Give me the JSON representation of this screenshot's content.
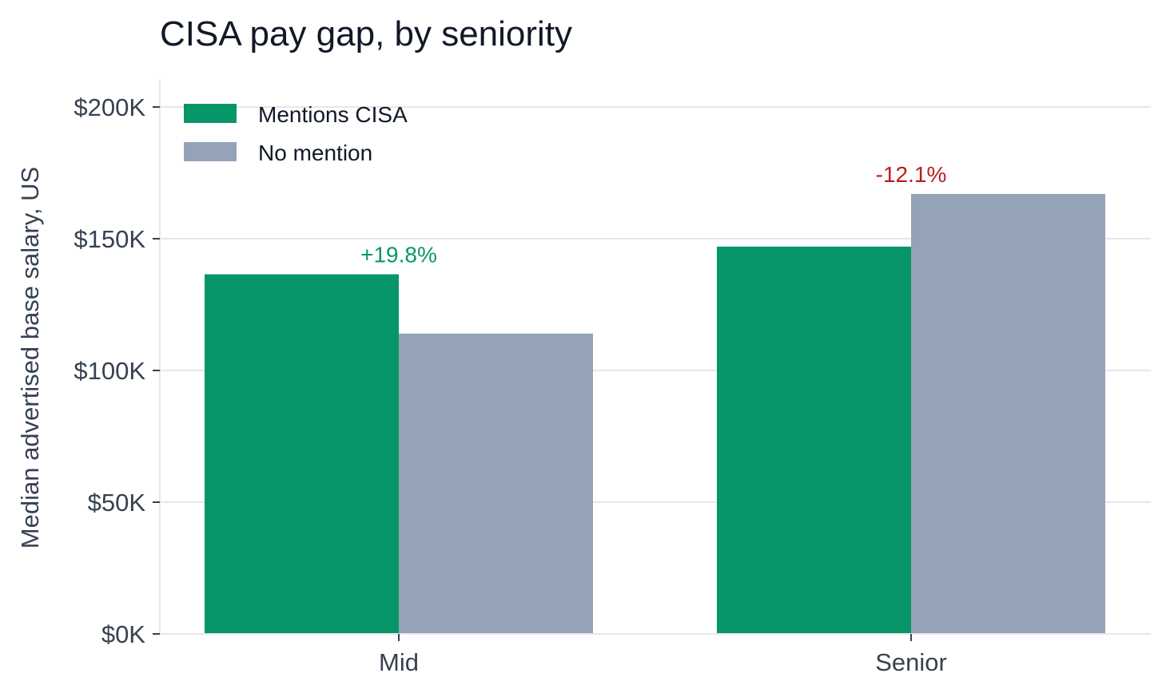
{
  "chart_data": {
    "type": "bar",
    "title": "CISA pay gap, by seniority",
    "xlabel": "",
    "ylabel": "Median advertised base salary, US",
    "categories": [
      "Mid",
      "Senior"
    ],
    "series": [
      {
        "name": "Mentions CISA",
        "color": "#079669",
        "values": [
          136500,
          147000
        ]
      },
      {
        "name": "No mention",
        "color": "#94A3B8",
        "values": [
          114000,
          167000
        ]
      }
    ],
    "ylim": [
      0,
      210000
    ],
    "yticks": [
      0,
      50000,
      100000,
      150000,
      200000
    ],
    "ytick_labels": [
      "$0K",
      "$50K",
      "$100K",
      "$150K",
      "$200K"
    ],
    "annotations": [
      {
        "category": "Mid",
        "text": "+19.8%",
        "color": "#079669"
      },
      {
        "category": "Senior",
        "text": "-12.1%",
        "color": "#B91C1C"
      }
    ],
    "grid": "horizontal",
    "legend_position": "top-left"
  }
}
